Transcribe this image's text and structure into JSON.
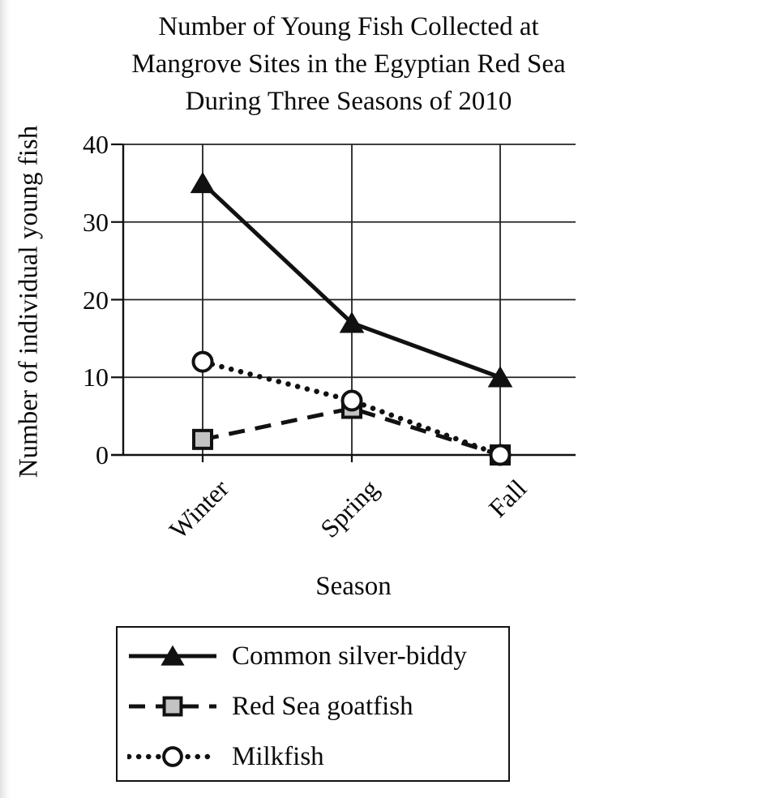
{
  "title": {
    "lines": [
      "Number of Young Fish Collected at",
      "Mangrove Sites in the Egyptian Red Sea",
      "During Three Seasons of 2010"
    ]
  },
  "chart_data": {
    "type": "line",
    "title": "Number of Young Fish Collected at Mangrove Sites in the Egyptian Red Sea During Three Seasons of 2010",
    "categories": [
      "Winter",
      "Spring",
      "Fall"
    ],
    "series": [
      {
        "name": "Common silver-biddy",
        "values": [
          35,
          17,
          10
        ],
        "line_style": "solid",
        "marker": "triangle",
        "marker_fill": "#111111"
      },
      {
        "name": "Red Sea goatfish",
        "values": [
          2,
          6,
          0
        ],
        "line_style": "dashed",
        "marker": "square",
        "marker_fill": "#c3c3c3"
      },
      {
        "name": "Milkfish",
        "values": [
          12,
          7,
          0
        ],
        "line_style": "dotted",
        "marker": "circle",
        "marker_fill": "#ffffff"
      }
    ],
    "xlabel": "Season",
    "ylabel": "Number of individual young fish",
    "ylim": [
      0,
      40
    ],
    "yticks": [
      0,
      10,
      20,
      30,
      40
    ],
    "grid": true,
    "line_color": "#111111",
    "legend_position": "below-left"
  }
}
